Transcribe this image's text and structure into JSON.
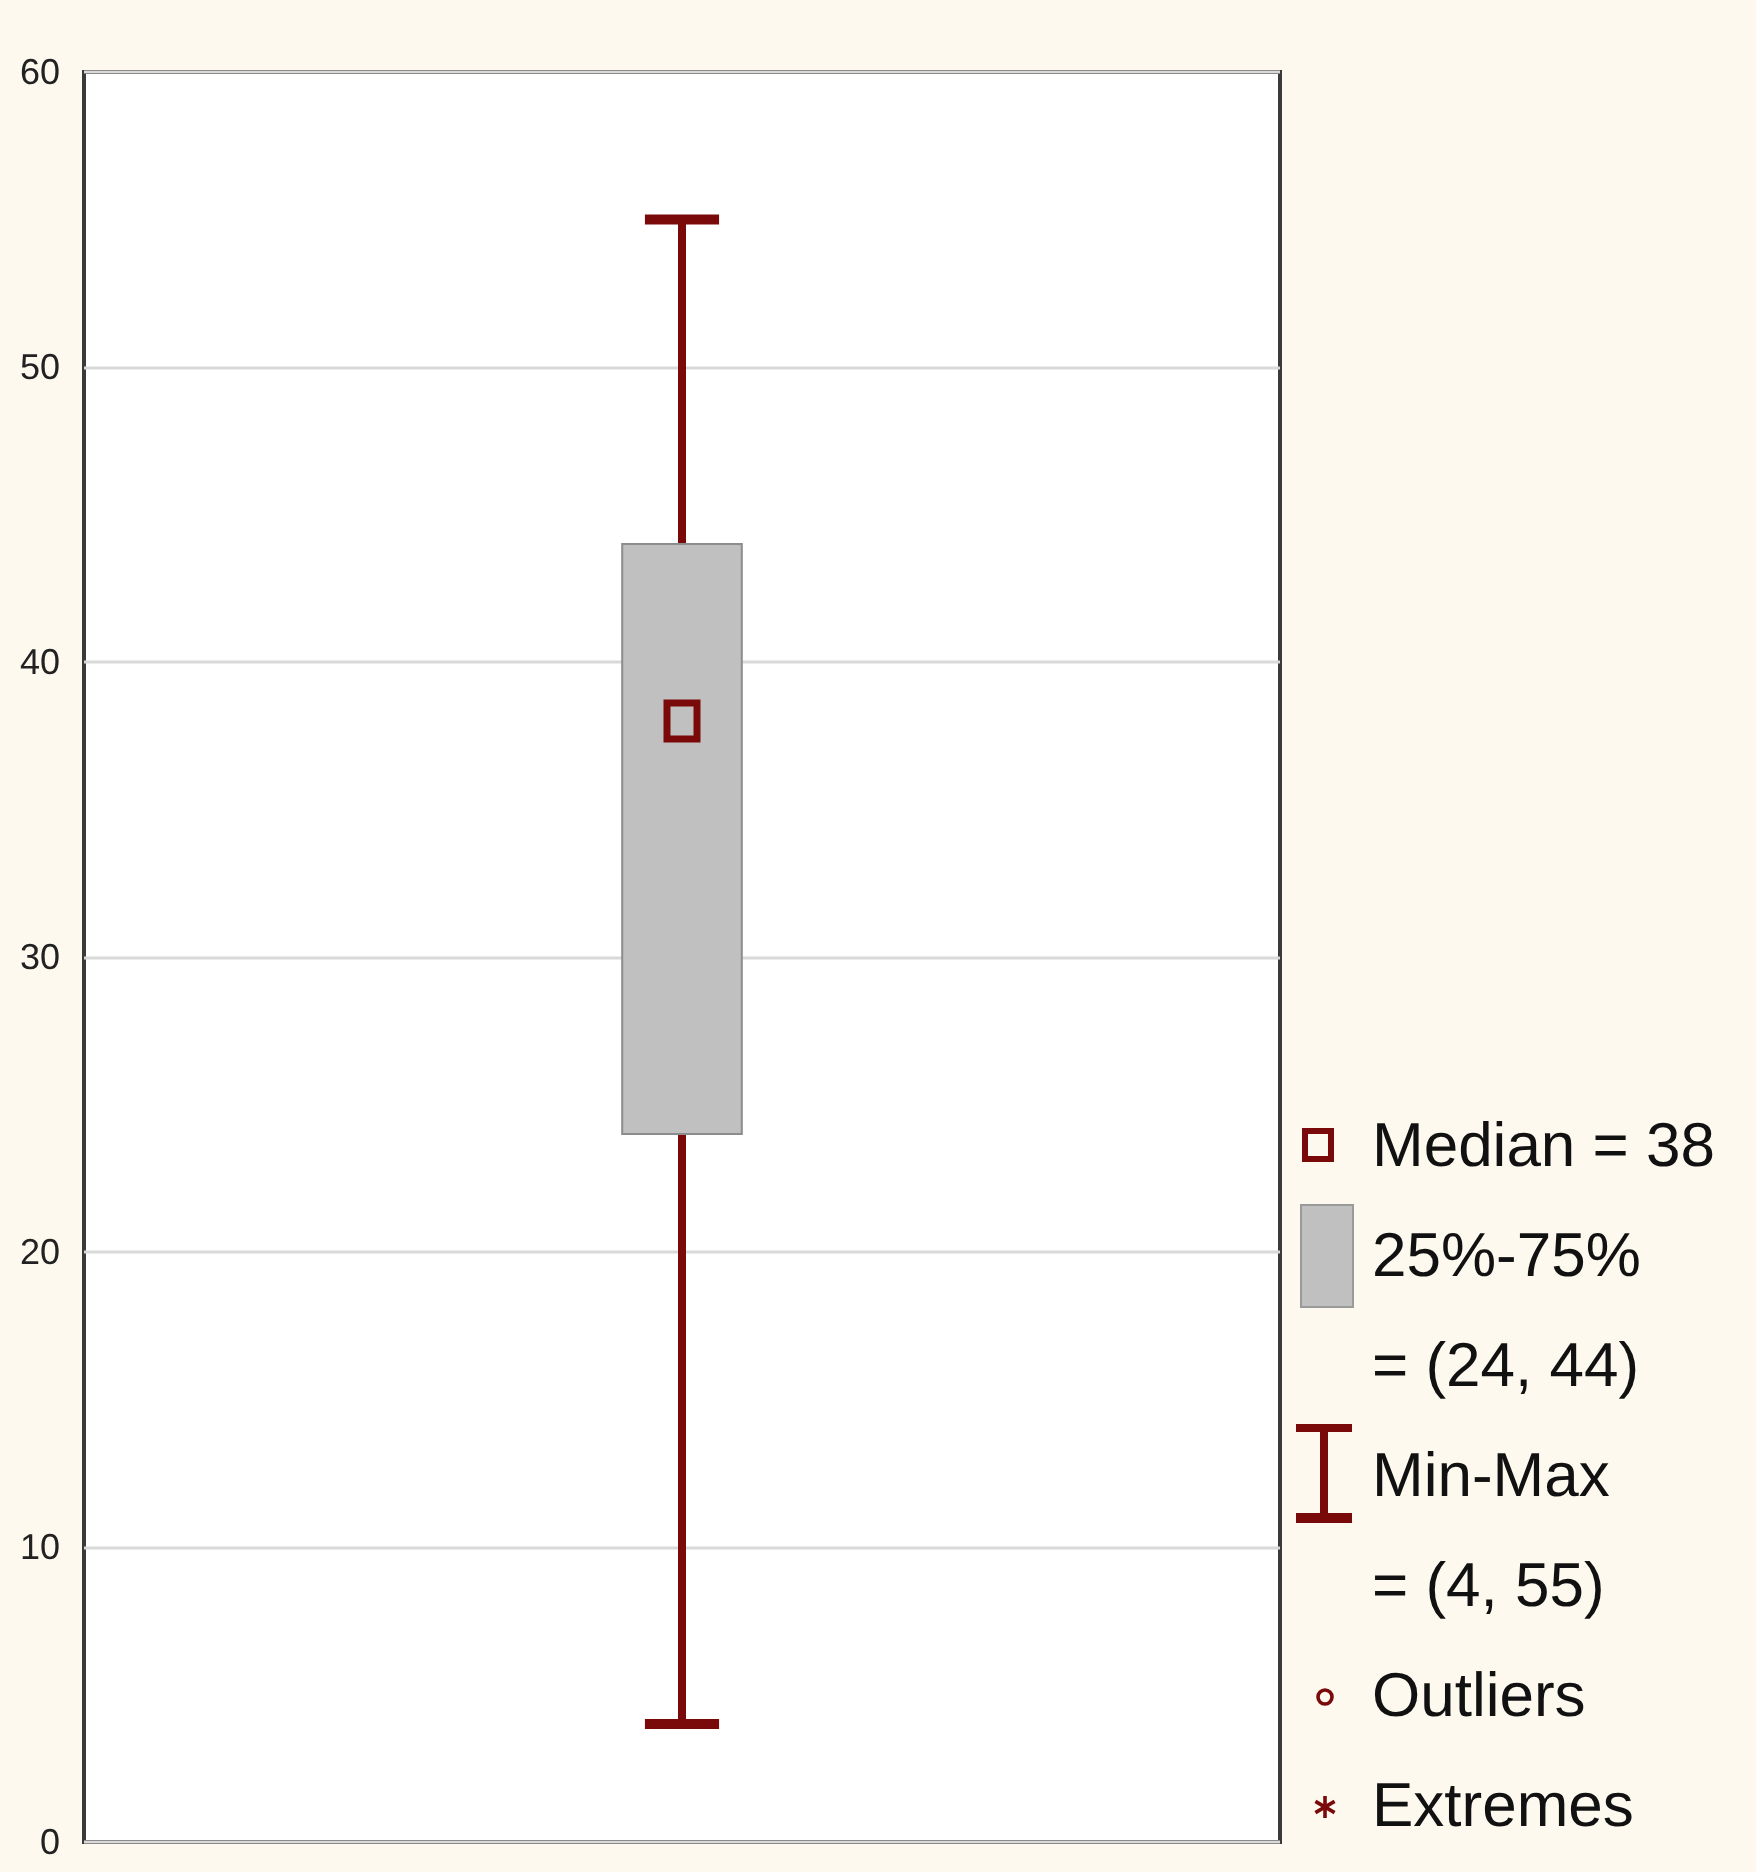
{
  "chart_data": {
    "type": "box",
    "categories": [
      null
    ],
    "boxes": [
      {
        "low": 4,
        "q1": 24,
        "median": 38,
        "q3": 44,
        "high": 55
      }
    ],
    "color": "#7a0a0a",
    "colors": [
      "#c0c0c0"
    ],
    "ylim": [
      0,
      60
    ],
    "yticks": [
      0,
      10,
      20,
      30,
      40,
      50,
      60
    ],
    "grid": "y",
    "tick_labels": "y",
    "annotations": [
      "Median = 38",
      "25%-75%\n= (24, 44)",
      "Min-Max\n= (4, 55)",
      "Outliers",
      "Extremes"
    ]
  }
}
